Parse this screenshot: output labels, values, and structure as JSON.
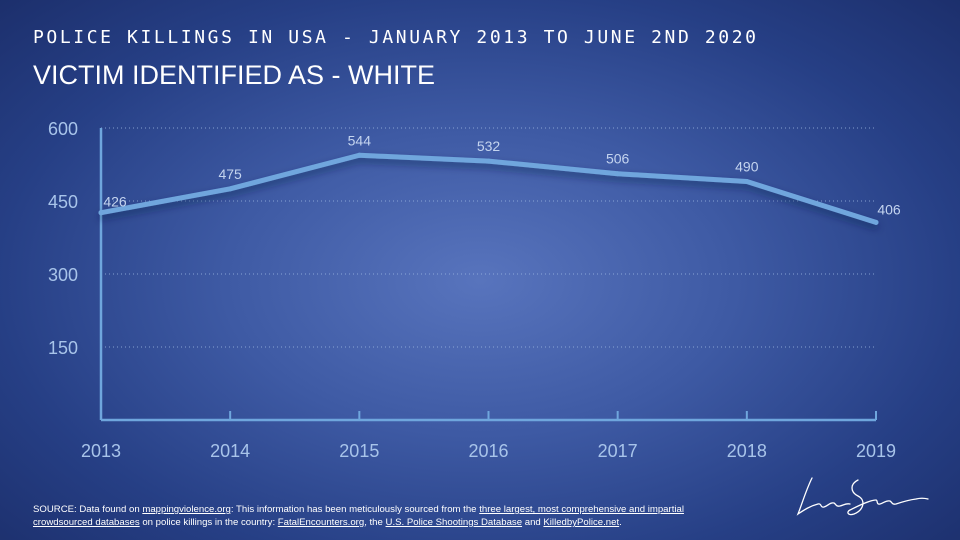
{
  "header": {
    "supertitle": "POLICE KILLINGS IN USA - JANUARY 2013 TO JUNE 2ND 2020",
    "title": "VICTIM IDENTIFIED AS - WHITE"
  },
  "colors": {
    "line": "#6fa6dd",
    "axis": "#6fa6dd",
    "tick_text": "#a8c4ea",
    "data_label": "#c4d4ef",
    "gridline": "#9bb6e0"
  },
  "chart_data": {
    "type": "line",
    "title": "VICTIM IDENTIFIED AS - WHITE",
    "categories": [
      "2013",
      "2014",
      "2015",
      "2016",
      "2017",
      "2018",
      "2019"
    ],
    "values": [
      426,
      475,
      544,
      532,
      506,
      490,
      406
    ],
    "data_labels": [
      "426",
      "475",
      "544",
      "532",
      "506",
      "490",
      "406"
    ],
    "ylim": [
      0,
      600
    ],
    "yticks": [
      150,
      300,
      450,
      600
    ],
    "ytick_labels": [
      "150",
      "300",
      "450",
      "600"
    ],
    "xlabel": "",
    "ylabel": "",
    "grid": "horizontal-dotted",
    "legend": "none"
  },
  "source": {
    "p1": "SOURCE: Data found on ",
    "l1": "mappingviolence.org",
    "p2": ": This information has been meticulously sourced from the ",
    "l2": "three largest, most comprehensive and impartial crowdsourced databases",
    "p3": " on police killings in the country: ",
    "l3": "FatalEncounters.org",
    "p4": ", the ",
    "l4": "U.S. Police Shootings Database",
    "p5": " and ",
    "l5": "KilledbyPolice.net",
    "p6": "."
  }
}
